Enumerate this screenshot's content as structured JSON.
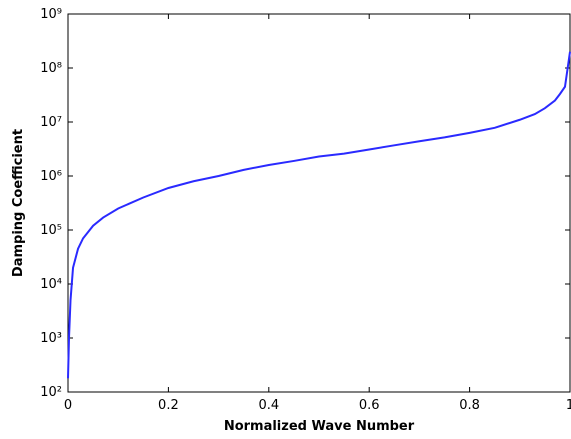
{
  "chart_data": {
    "type": "line",
    "xlabel": "Normalized Wave Number",
    "ylabel": "Damping Coefficient",
    "yscale": "log",
    "xlim": [
      0,
      1
    ],
    "ylim": [
      100,
      1000000000
    ],
    "xticks": [
      0,
      0.2,
      0.4,
      0.6,
      0.8,
      1
    ],
    "yticks": [
      {
        "value": 100,
        "label": "10²"
      },
      {
        "value": 1000,
        "label": "10³"
      },
      {
        "value": 10000,
        "label": "10⁴"
      },
      {
        "value": 100000,
        "label": "10⁵"
      },
      {
        "value": 1000000,
        "label": "10⁶"
      },
      {
        "value": 10000000,
        "label": "10⁷"
      },
      {
        "value": 100000000,
        "label": "10⁸"
      },
      {
        "value": 1000000000,
        "label": "10⁹"
      }
    ],
    "x": [
      0,
      0.002,
      0.005,
      0.01,
      0.015,
      0.02,
      0.03,
      0.05,
      0.07,
      0.1,
      0.15,
      0.2,
      0.25,
      0.3,
      0.35,
      0.4,
      0.45,
      0.5,
      0.55,
      0.6,
      0.65,
      0.7,
      0.75,
      0.8,
      0.85,
      0.9,
      0.93,
      0.95,
      0.97,
      0.98,
      0.99,
      1.0
    ],
    "series": [
      {
        "color": "#2a2aff",
        "values": [
          180,
          1000,
          5000,
          20000,
          30000,
          45000,
          70000,
          120000,
          170000,
          250000,
          400000,
          600000,
          800000,
          1000000,
          1300000,
          1600000,
          1900000,
          2300000,
          2600000,
          3100000,
          3700000,
          4400000,
          5200000,
          6300000,
          7800000,
          11000000,
          14000000,
          18000000,
          25000000,
          33000000,
          45000000,
          200000000
        ]
      }
    ]
  }
}
